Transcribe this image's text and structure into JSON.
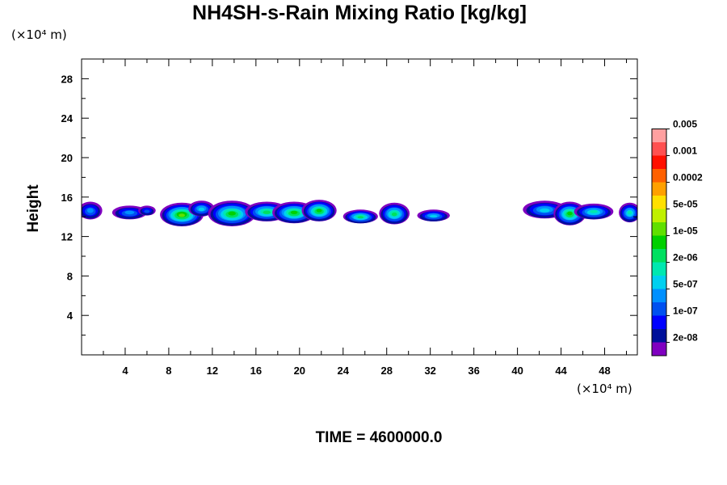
{
  "chart_data": {
    "type": "heatmap",
    "title": "NH4SH-s-Rain Mixing Ratio [kg/kg]",
    "ylabel": "Height",
    "x_unit": "(×10⁴ m)",
    "y_unit": "(×10⁴ m)",
    "xlim": [
      0,
      51
    ],
    "ylim": [
      0,
      30
    ],
    "xticks": [
      4,
      8,
      12,
      16,
      20,
      24,
      28,
      32,
      36,
      40,
      44,
      48
    ],
    "yticks": [
      4,
      8,
      12,
      16,
      20,
      24,
      28
    ],
    "grid": false,
    "colorbar": {
      "placement": "right",
      "colors": [
        "#8000c0",
        "#00109a",
        "#0000ff",
        "#0050f0",
        "#0090ff",
        "#00d0f0",
        "#00e8b0",
        "#00e060",
        "#00d000",
        "#60e000",
        "#c0f000",
        "#ffe000",
        "#ffa000",
        "#ff6000",
        "#ff1000",
        "#ff5050",
        "#ffa0a0"
      ],
      "labels": [
        "2e-08",
        "1e-07",
        "5e-07",
        "2e-06",
        "1e-05",
        "5e-05",
        "0.0002",
        "0.001",
        "0.005"
      ]
    },
    "cells": [
      {
        "x": 0.8,
        "z": 14.6,
        "rx": 1.1,
        "rz": 0.9,
        "level": 4
      },
      {
        "x": 4.4,
        "z": 14.4,
        "rx": 1.6,
        "rz": 0.7,
        "level": 4
      },
      {
        "x": 6.0,
        "z": 14.6,
        "rx": 0.8,
        "rz": 0.5,
        "level": 3
      },
      {
        "x": 9.2,
        "z": 14.2,
        "rx": 2.0,
        "rz": 1.2,
        "level": 9
      },
      {
        "x": 11.0,
        "z": 14.8,
        "rx": 1.2,
        "rz": 0.8,
        "level": 5
      },
      {
        "x": 13.8,
        "z": 14.3,
        "rx": 2.2,
        "rz": 1.3,
        "level": 8
      },
      {
        "x": 17.0,
        "z": 14.5,
        "rx": 2.0,
        "rz": 1.0,
        "level": 7
      },
      {
        "x": 19.5,
        "z": 14.4,
        "rx": 2.0,
        "rz": 1.1,
        "level": 8
      },
      {
        "x": 21.8,
        "z": 14.6,
        "rx": 1.6,
        "rz": 1.1,
        "level": 8
      },
      {
        "x": 25.6,
        "z": 14.0,
        "rx": 1.6,
        "rz": 0.7,
        "level": 7
      },
      {
        "x": 28.7,
        "z": 14.3,
        "rx": 1.4,
        "rz": 1.1,
        "level": 7
      },
      {
        "x": 32.3,
        "z": 14.1,
        "rx": 1.5,
        "rz": 0.6,
        "level": 5
      },
      {
        "x": 42.5,
        "z": 14.7,
        "rx": 2.0,
        "rz": 0.9,
        "level": 5
      },
      {
        "x": 44.8,
        "z": 14.3,
        "rx": 1.5,
        "rz": 1.2,
        "level": 8
      },
      {
        "x": 47.0,
        "z": 14.5,
        "rx": 1.8,
        "rz": 0.8,
        "level": 6
      },
      {
        "x": 50.3,
        "z": 14.4,
        "rx": 1.0,
        "rz": 1.0,
        "level": 6
      }
    ]
  },
  "time_label": "TIME = 4600000.0"
}
